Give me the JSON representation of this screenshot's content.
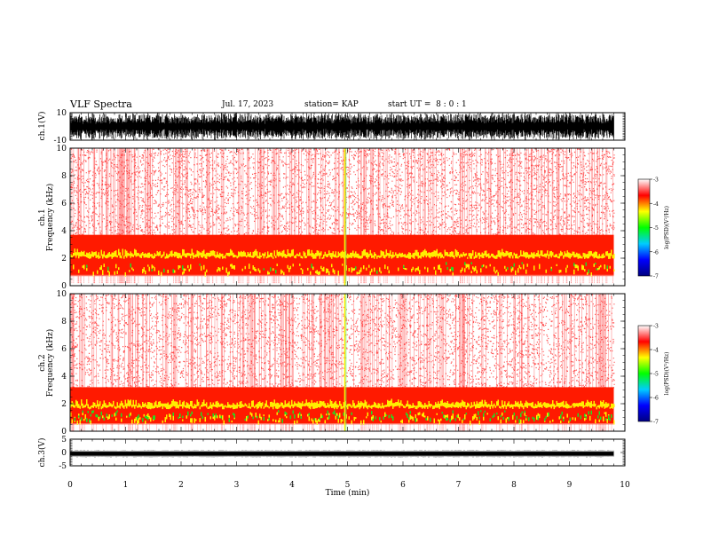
{
  "header": {
    "title": "VLF Spectra",
    "date": "Jul. 17, 2023",
    "station": "station= KAP",
    "start": "start UT =  8 : 0 : 1"
  },
  "colors": {
    "bg": "#ffffff",
    "axis": "#000000",
    "colormap": [
      "#000080",
      "#0000ff",
      "#00ccff",
      "#00ff00",
      "#ffff00",
      "#ff0000",
      "#ffffff"
    ]
  },
  "chart_data": [
    {
      "type": "line",
      "panel": "ch1-waveform",
      "ylabel": "ch.1(V)",
      "xlim": [
        0,
        10
      ],
      "ylim": [
        -10,
        10
      ],
      "yticks": [
        "10",
        "-10"
      ],
      "description_values": {
        "amplitude_min": -10,
        "amplitude_max": 10,
        "t_end_min": 9.8
      }
    },
    {
      "type": "heatmap",
      "panel": "ch1-spectrogram",
      "ylabel": "ch.1 Frequency (kHz)",
      "xlim": [
        0,
        10
      ],
      "ylim": [
        0,
        10
      ],
      "yticks": [
        "0",
        "2",
        "4",
        "6",
        "8",
        "10"
      ],
      "intense_band_khz": [
        0.7,
        3.7
      ],
      "t_end_min": 9.8,
      "colorbar": {
        "label": "log(PSD)(V²/Hz)",
        "range": [
          -7,
          -3
        ],
        "ticks": [
          "-3",
          "-4",
          "-5",
          "-6",
          "-7"
        ]
      }
    },
    {
      "type": "heatmap",
      "panel": "ch2-spectrogram",
      "ylabel": "ch.2 Frequency (kHz)",
      "xlim": [
        0,
        10
      ],
      "ylim": [
        0,
        10
      ],
      "yticks": [
        "0",
        "2",
        "4",
        "6",
        "8",
        "10"
      ],
      "intense_band_khz": [
        0.5,
        3.2
      ],
      "t_end_min": 9.8,
      "colorbar": {
        "label": "log(PSD)(V²/Hz)",
        "range": [
          -7,
          -3
        ],
        "ticks": [
          "-3",
          "-4",
          "-5",
          "-6",
          "-7"
        ]
      }
    },
    {
      "type": "line",
      "panel": "ch3-waveform",
      "ylabel": "ch.3(V)",
      "xlim": [
        0,
        10
      ],
      "ylim": [
        -5,
        5
      ],
      "yticks": [
        "5",
        "0",
        "-5"
      ],
      "description_values": {
        "amplitude_min": -1.2,
        "amplitude_max": 0.3,
        "t_end_min": 9.8
      }
    }
  ],
  "xaxis": {
    "label": "Time (min)",
    "ticks": [
      "0",
      "1",
      "2",
      "3",
      "4",
      "5",
      "6",
      "7",
      "8",
      "9",
      "10"
    ]
  }
}
